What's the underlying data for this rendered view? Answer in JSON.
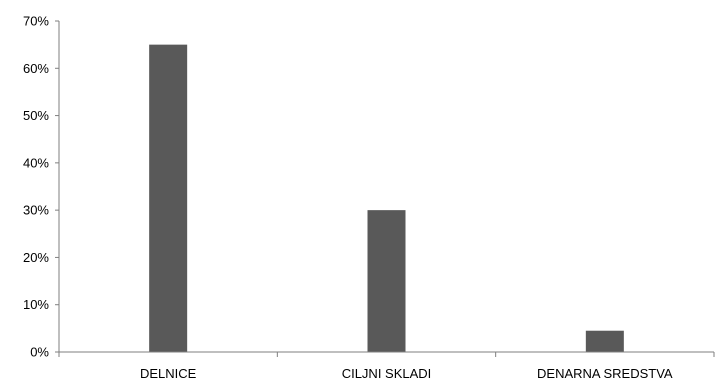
{
  "chart_data": {
    "type": "bar",
    "categories": [
      "DELNICE",
      "CILJNI SKLADI",
      "DENARNA SREDSTVA"
    ],
    "series": [
      {
        "values": [
          65,
          30,
          4.5
        ]
      }
    ],
    "title": "",
    "xlabel": "",
    "ylabel": "",
    "ylim": [
      0,
      70
    ],
    "yticks": [
      "0%",
      "10%",
      "20%",
      "30%",
      "40%",
      "50%",
      "60%",
      "70%"
    ],
    "grid": false,
    "legend": "none"
  },
  "colors": {
    "bar": "#595959",
    "axis": "#7f7f7f"
  }
}
